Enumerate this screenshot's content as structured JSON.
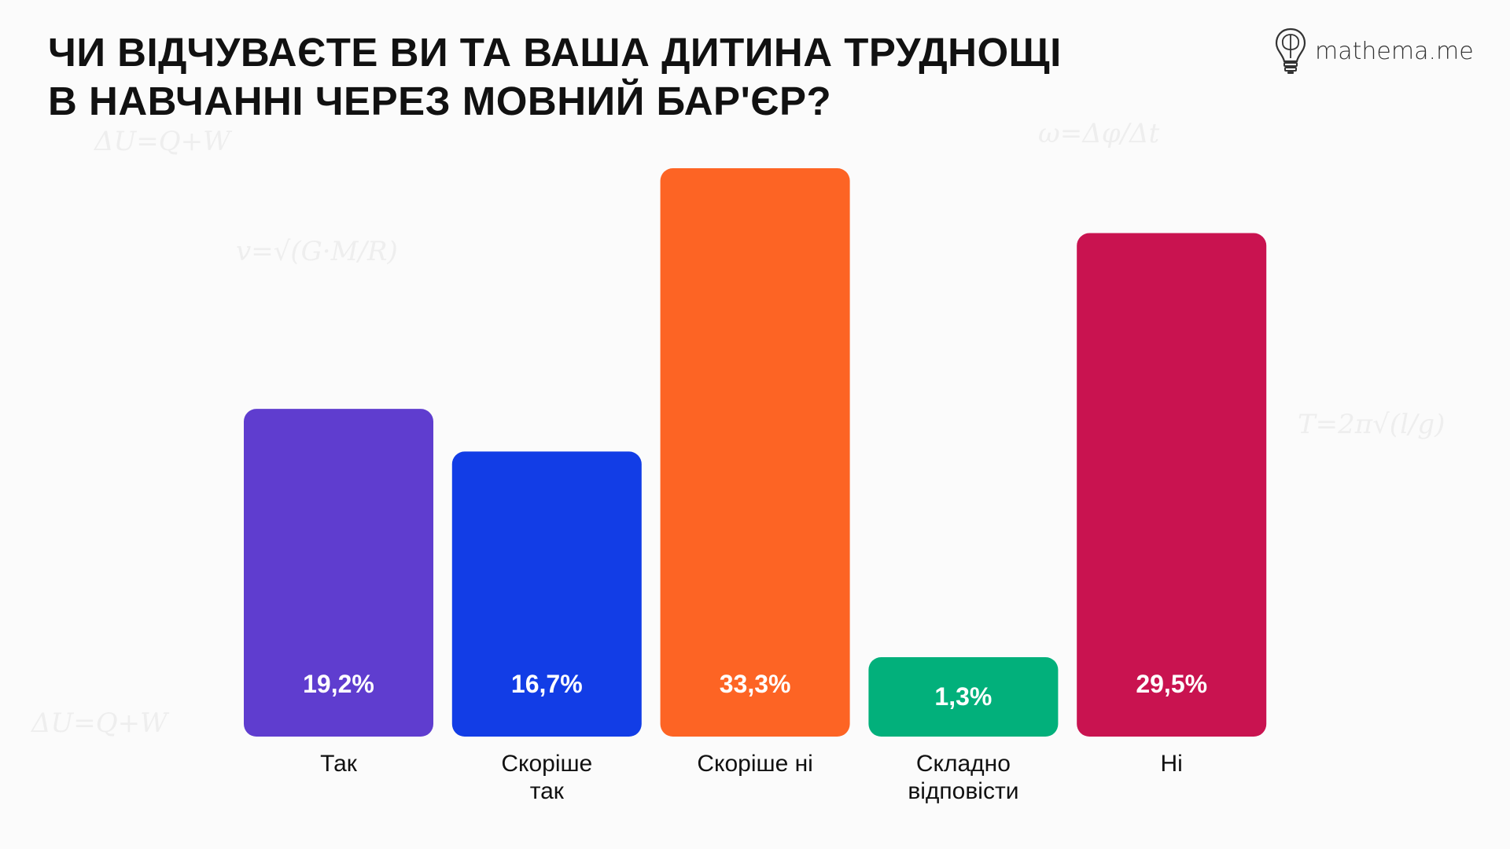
{
  "header": {
    "title_line1": "ЧИ ВІДЧУВАЄТЕ ВИ ТА ВАША ДИТИНА ТРУДНОЩІ",
    "title_line2": "В НАВЧАННІ ЧЕРЕЗ МОВНИЙ БАР'ЄР?",
    "logo_text": "mathema.me"
  },
  "chart_data": {
    "type": "bar",
    "title": "ЧИ ВІДЧУВАЄТЕ ВИ ТА ВАША ДИТИНА ТРУДНОЩІ В НАВЧАННІ ЧЕРЕЗ МОВНИЙ БАР'ЄР?",
    "categories": [
      [
        "Так"
      ],
      [
        "Скоріше",
        "так"
      ],
      [
        "Скоріше ні"
      ],
      [
        "Складно",
        "відповісти"
      ],
      [
        "Ні"
      ]
    ],
    "values": [
      19.2,
      16.7,
      33.3,
      1.3,
      29.5
    ],
    "value_labels": [
      "19,2%",
      "16,7%",
      "33,3%",
      "1,3%",
      "29,5%"
    ],
    "colors": [
      "#5f3dcf",
      "#123de6",
      "#fd6424",
      "#02b07b",
      "#c91350"
    ],
    "xlabel": "",
    "ylabel": "",
    "ylim": [
      0,
      33.3
    ],
    "grid": false,
    "legend": "none"
  }
}
